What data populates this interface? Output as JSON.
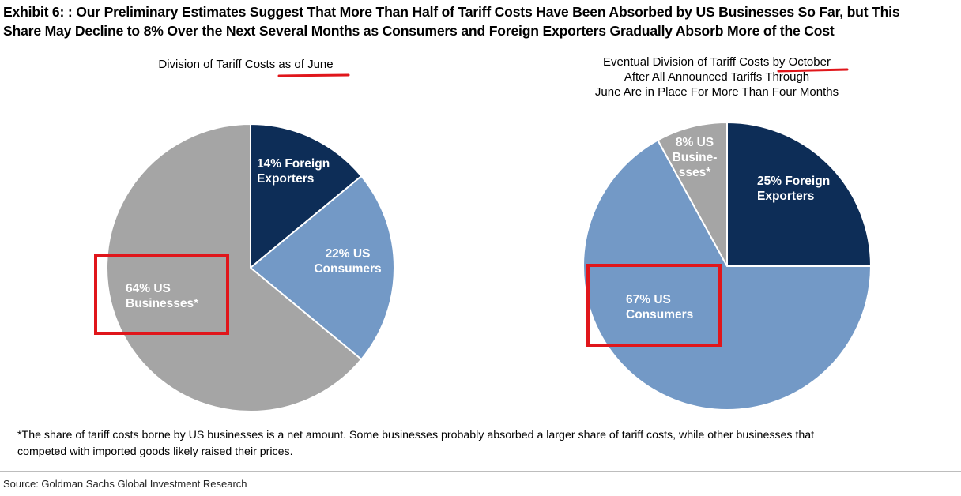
{
  "title": {
    "line1": "Exhibit 6: : Our Preliminary Estimates Suggest That More Than Half of Tariff Costs Have Been Absorbed by US Businesses So Far, but This",
    "line2": "Share May Decline to 8% Over the Next Several Months as Consumers and Foreign Exporters Gradually Absorb More of the Cost"
  },
  "chart_data": [
    {
      "type": "pie",
      "title": "Division of Tariff Costs as of June",
      "title_lines": [
        "Division of Tariff Costs as of June"
      ],
      "slices": [
        {
          "name": "Foreign Exporters",
          "value": 14,
          "label_lines": [
            "14% Foreign",
            "Exporters"
          ],
          "color": "#0d2d57"
        },
        {
          "name": "US Consumers",
          "value": 22,
          "label_lines": [
            "22% US",
            "Consumers"
          ],
          "color": "#7399c6"
        },
        {
          "name": "US Businesses*",
          "value": 64,
          "label_lines": [
            "64% US",
            "Businesses*"
          ],
          "color": "#a5a5a5"
        }
      ],
      "highlight_slice": "US Businesses*",
      "underlined_text": "as of June"
    },
    {
      "type": "pie",
      "title": "Eventual Division of Tariff Costs by October After All Announced Tariffs Through June Are in Place For More Than Four Months",
      "title_lines": [
        "Eventual Division of Tariff Costs by October",
        "After All Announced Tariffs Through",
        "June Are in Place For More Than Four Months"
      ],
      "slices": [
        {
          "name": "Foreign Exporters",
          "value": 25,
          "label_lines": [
            "25% Foreign",
            "Exporters"
          ],
          "color": "#0d2d57"
        },
        {
          "name": "US Consumers",
          "value": 67,
          "label_lines": [
            "67% US",
            "Consumers"
          ],
          "color": "#7399c6"
        },
        {
          "name": "US Businesses*",
          "value": 8,
          "label_lines": [
            "8% US",
            "Busine-",
            "sses*"
          ],
          "color": "#a5a5a5"
        }
      ],
      "highlight_slice": "US Consumers",
      "underlined_text": "by October"
    }
  ],
  "colors": {
    "highlight": "#e0161b",
    "background": "#ffffff",
    "label_text": "#ffffff"
  },
  "footnote": {
    "line1": "*The share of tariff costs borne by US businesses is a net amount. Some businesses probably absorbed a larger share of tariff costs, while other businesses that",
    "line2": "competed with imported goods likely raised their prices."
  },
  "source": "Source: Goldman Sachs Global Investment Research"
}
